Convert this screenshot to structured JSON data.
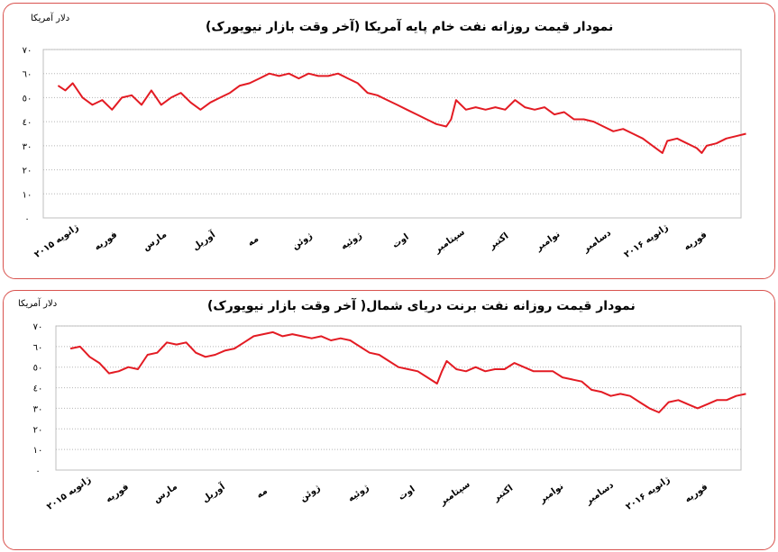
{
  "chart_data": [
    {
      "type": "line",
      "title": "نمودار قیمت روزانه نفت خام پایه آمریکا (آخر وقت بازار نیویورک)",
      "ylabel": "دلار آمریکا",
      "y_ticks": [
        "٠",
        "١٠",
        "٢٠",
        "٣٠",
        "٤٠",
        "٥٠",
        "٦٠",
        "٧٠"
      ],
      "ylim": [
        0,
        70
      ],
      "x_tick_labels": [
        "ژانویه ۲۰۱۵",
        "فوریه",
        "مارس",
        "آوریل",
        "مه",
        "ژوئن",
        "ژوئیه",
        "اوت",
        "سپتامبر",
        "اکتبر",
        "نوامبر",
        "دسامبر",
        "ژانویه ۲۰۱۶",
        "فوریه"
      ],
      "grid": true,
      "line_color": "#e31b23",
      "series": [
        {
          "points": [
            [
              0,
              55
            ],
            [
              0.15,
              53
            ],
            [
              0.3,
              56
            ],
            [
              0.5,
              50
            ],
            [
              0.7,
              47
            ],
            [
              0.9,
              49
            ],
            [
              1.1,
              45
            ],
            [
              1.3,
              50
            ],
            [
              1.5,
              51
            ],
            [
              1.7,
              47
            ],
            [
              1.9,
              53
            ],
            [
              2.1,
              47
            ],
            [
              2.3,
              50
            ],
            [
              2.5,
              52
            ],
            [
              2.7,
              48
            ],
            [
              2.9,
              45
            ],
            [
              3.1,
              48
            ],
            [
              3.3,
              50
            ],
            [
              3.5,
              52
            ],
            [
              3.7,
              55
            ],
            [
              3.9,
              56
            ],
            [
              4.1,
              58
            ],
            [
              4.3,
              60
            ],
            [
              4.5,
              59
            ],
            [
              4.7,
              60
            ],
            [
              4.9,
              58
            ],
            [
              5.1,
              60
            ],
            [
              5.3,
              59
            ],
            [
              5.5,
              59
            ],
            [
              5.7,
              60
            ],
            [
              5.9,
              58
            ],
            [
              6.1,
              56
            ],
            [
              6.3,
              52
            ],
            [
              6.5,
              51
            ],
            [
              6.7,
              49
            ],
            [
              6.9,
              47
            ],
            [
              7.1,
              45
            ],
            [
              7.3,
              43
            ],
            [
              7.5,
              41
            ],
            [
              7.7,
              39
            ],
            [
              7.9,
              38
            ],
            [
              8.0,
              41
            ],
            [
              8.1,
              49
            ],
            [
              8.3,
              45
            ],
            [
              8.5,
              46
            ],
            [
              8.7,
              45
            ],
            [
              8.9,
              46
            ],
            [
              9.1,
              45
            ],
            [
              9.3,
              49
            ],
            [
              9.5,
              46
            ],
            [
              9.7,
              45
            ],
            [
              9.9,
              46
            ],
            [
              10.1,
              43
            ],
            [
              10.3,
              44
            ],
            [
              10.5,
              41
            ],
            [
              10.7,
              41
            ],
            [
              10.9,
              40
            ],
            [
              11.1,
              38
            ],
            [
              11.3,
              36
            ],
            [
              11.5,
              37
            ],
            [
              11.7,
              35
            ],
            [
              11.9,
              33
            ],
            [
              12.1,
              30
            ],
            [
              12.3,
              27
            ],
            [
              12.4,
              32
            ],
            [
              12.6,
              33
            ],
            [
              12.8,
              31
            ],
            [
              13.0,
              29
            ],
            [
              13.1,
              27
            ],
            [
              13.2,
              30
            ],
            [
              13.4,
              31
            ],
            [
              13.6,
              33
            ],
            [
              13.8,
              34
            ],
            [
              14.0,
              35
            ]
          ]
        }
      ]
    },
    {
      "type": "line",
      "title": "نمودار قیمت روزانه نفت برنت دریای شمال( آخر وقت بازار نیویورک)",
      "ylabel": "دلار آمریکا",
      "y_ticks": [
        "٠",
        "١٠",
        "٢٠",
        "٣٠",
        "٤٠",
        "٥٠",
        "٦٠",
        "٧٠"
      ],
      "ylim": [
        0,
        70
      ],
      "x_tick_labels": [
        "ژانویه ۲۰۱۵",
        "فوریه",
        "مارس",
        "آوریل",
        "مه",
        "ژوئن",
        "ژوئیه",
        "اوت",
        "سپتامبر",
        "اکتبر",
        "نوامبر",
        "دسامبر",
        "ژانویه ۲۰۱۶",
        "فوریه"
      ],
      "grid": true,
      "line_color": "#e31b23",
      "series": [
        {
          "points": [
            [
              0,
              59
            ],
            [
              0.2,
              60
            ],
            [
              0.4,
              55
            ],
            [
              0.6,
              52
            ],
            [
              0.8,
              47
            ],
            [
              1.0,
              48
            ],
            [
              1.2,
              50
            ],
            [
              1.4,
              49
            ],
            [
              1.6,
              56
            ],
            [
              1.8,
              57
            ],
            [
              2.0,
              62
            ],
            [
              2.2,
              61
            ],
            [
              2.4,
              62
            ],
            [
              2.6,
              57
            ],
            [
              2.8,
              55
            ],
            [
              3.0,
              56
            ],
            [
              3.2,
              58
            ],
            [
              3.4,
              59
            ],
            [
              3.6,
              62
            ],
            [
              3.8,
              65
            ],
            [
              4.0,
              66
            ],
            [
              4.2,
              67
            ],
            [
              4.4,
              65
            ],
            [
              4.6,
              66
            ],
            [
              4.8,
              65
            ],
            [
              5.0,
              64
            ],
            [
              5.2,
              65
            ],
            [
              5.4,
              63
            ],
            [
              5.6,
              64
            ],
            [
              5.8,
              63
            ],
            [
              6.0,
              60
            ],
            [
              6.2,
              57
            ],
            [
              6.4,
              56
            ],
            [
              6.6,
              53
            ],
            [
              6.8,
              50
            ],
            [
              7.0,
              49
            ],
            [
              7.2,
              48
            ],
            [
              7.4,
              45
            ],
            [
              7.6,
              42
            ],
            [
              7.7,
              48
            ],
            [
              7.8,
              53
            ],
            [
              8.0,
              49
            ],
            [
              8.2,
              48
            ],
            [
              8.4,
              50
            ],
            [
              8.6,
              48
            ],
            [
              8.8,
              49
            ],
            [
              9.0,
              49
            ],
            [
              9.2,
              52
            ],
            [
              9.4,
              50
            ],
            [
              9.6,
              48
            ],
            [
              9.8,
              48
            ],
            [
              10.0,
              48
            ],
            [
              10.2,
              45
            ],
            [
              10.4,
              44
            ],
            [
              10.6,
              43
            ],
            [
              10.8,
              39
            ],
            [
              11.0,
              38
            ],
            [
              11.2,
              36
            ],
            [
              11.4,
              37
            ],
            [
              11.6,
              36
            ],
            [
              11.8,
              33
            ],
            [
              12.0,
              30
            ],
            [
              12.2,
              28
            ],
            [
              12.4,
              33
            ],
            [
              12.6,
              34
            ],
            [
              12.8,
              32
            ],
            [
              13.0,
              30
            ],
            [
              13.2,
              32
            ],
            [
              13.4,
              34
            ],
            [
              13.6,
              34
            ],
            [
              13.8,
              36
            ],
            [
              14.0,
              37
            ]
          ]
        }
      ]
    }
  ]
}
